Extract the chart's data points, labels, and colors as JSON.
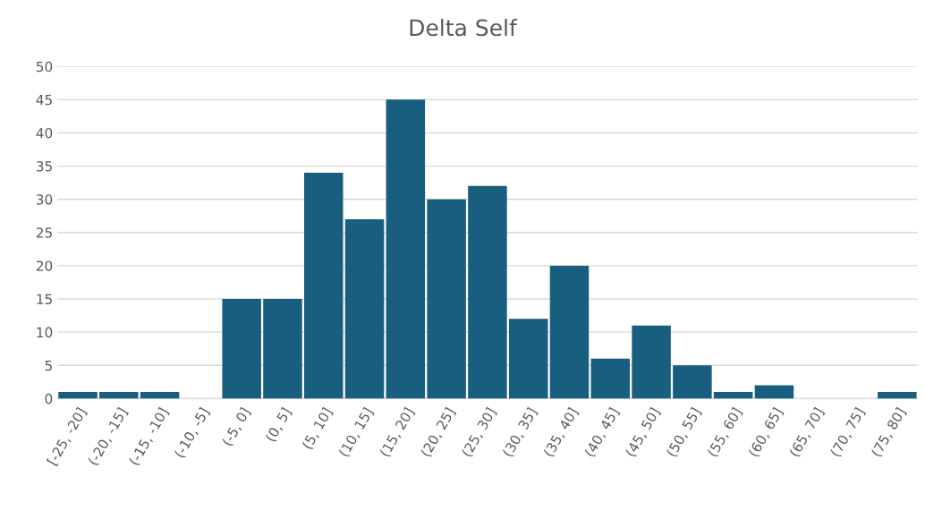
{
  "chart_data": {
    "type": "bar",
    "title": "Delta Self",
    "categories": [
      "[-25, -20]",
      "(-20, -15]",
      "(-15, -10]",
      "(-10, -5]",
      "(-5, 0]",
      "(0, 5]",
      "(5, 10]",
      "(10, 15]",
      "(15, 20]",
      "(20, 25]",
      "(25, 30]",
      "(30, 35]",
      "(35, 40]",
      "(40, 45]",
      "(45, 50]",
      "(50, 55]",
      "(55, 60]",
      "(60, 65]",
      "(65, 70]",
      "(70, 75]",
      "(75, 80]"
    ],
    "values": [
      1,
      1,
      1,
      0,
      15,
      15,
      34,
      27,
      45,
      30,
      32,
      12,
      20,
      6,
      11,
      5,
      1,
      2,
      0,
      0,
      1
    ],
    "color": "#175e7f",
    "ylim": [
      0,
      50
    ],
    "yticks": [
      0,
      5,
      10,
      15,
      20,
      25,
      30,
      35,
      40,
      45,
      50
    ],
    "grid": "y"
  }
}
